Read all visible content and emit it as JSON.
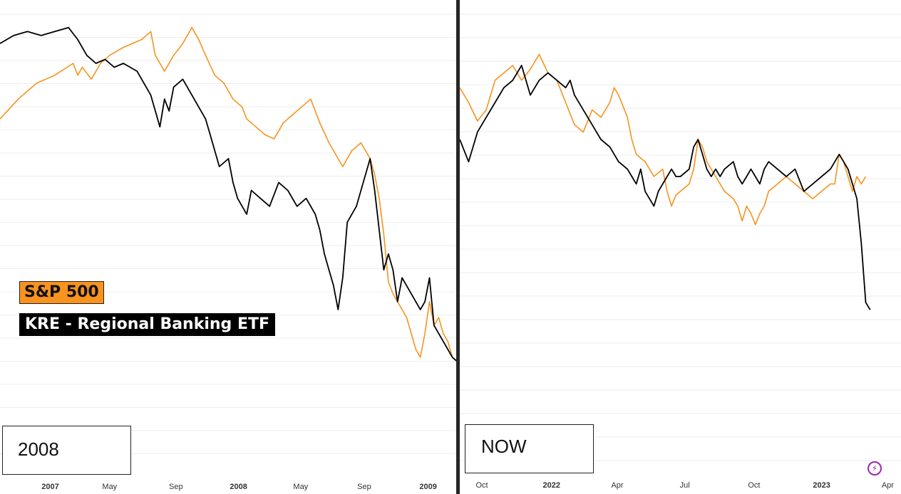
{
  "legend": {
    "sp500": "S&P 500",
    "kre": "KRE - Regional Banking ETF"
  },
  "colors": {
    "sp500": "#f7931e",
    "kre": "#000000",
    "grid": "#eeeeee",
    "divider": "#262626",
    "icon": "#9c27b0"
  },
  "icons": {
    "corner": "lightning-bolt-icon"
  },
  "chart_data": [
    {
      "type": "line",
      "period_label": "2008",
      "x_axis": {
        "ticks": [
          {
            "label": "2007",
            "t": 0.11,
            "bold": true
          },
          {
            "label": "May",
            "t": 0.24
          },
          {
            "label": "Sep",
            "t": 0.385
          },
          {
            "label": "2008",
            "t": 0.522,
            "bold": true
          },
          {
            "label": "May",
            "t": 0.658
          },
          {
            "label": "Sep",
            "t": 0.797
          },
          {
            "label": "2009",
            "t": 0.937,
            "bold": true
          }
        ]
      },
      "y_range": [
        0,
        100
      ],
      "grid": true,
      "series": [
        {
          "name": "S&P 500",
          "color": "#f7931e",
          "points": [
            [
              0,
              74
            ],
            [
              0.04,
              79
            ],
            [
              0.08,
              83
            ],
            [
              0.12,
              85
            ],
            [
              0.16,
              88
            ],
            [
              0.17,
              85
            ],
            [
              0.18,
              87
            ],
            [
              0.2,
              84
            ],
            [
              0.22,
              88
            ],
            [
              0.24,
              90
            ],
            [
              0.27,
              92
            ],
            [
              0.29,
              93
            ],
            [
              0.31,
              94
            ],
            [
              0.33,
              96
            ],
            [
              0.34,
              90
            ],
            [
              0.36,
              86
            ],
            [
              0.38,
              90
            ],
            [
              0.4,
              93
            ],
            [
              0.42,
              97
            ],
            [
              0.435,
              94
            ],
            [
              0.45,
              90
            ],
            [
              0.47,
              85
            ],
            [
              0.49,
              83
            ],
            [
              0.51,
              79
            ],
            [
              0.53,
              77
            ],
            [
              0.54,
              74
            ],
            [
              0.56,
              72
            ],
            [
              0.58,
              70
            ],
            [
              0.6,
              69
            ],
            [
              0.62,
              73
            ],
            [
              0.64,
              75
            ],
            [
              0.66,
              77
            ],
            [
              0.68,
              79
            ],
            [
              0.7,
              73
            ],
            [
              0.72,
              68
            ],
            [
              0.74,
              64
            ],
            [
              0.75,
              62
            ],
            [
              0.77,
              66
            ],
            [
              0.79,
              68
            ],
            [
              0.81,
              64
            ],
            [
              0.82,
              60
            ],
            [
              0.83,
              54
            ],
            [
              0.84,
              45
            ],
            [
              0.85,
              33
            ],
            [
              0.86,
              30
            ],
            [
              0.87,
              28
            ],
            [
              0.88,
              26
            ],
            [
              0.89,
              24
            ],
            [
              0.9,
              20
            ],
            [
              0.91,
              16
            ],
            [
              0.92,
              14
            ],
            [
              0.93,
              20
            ],
            [
              0.94,
              28
            ],
            [
              0.95,
              22
            ],
            [
              0.96,
              24
            ],
            [
              0.97,
              20
            ],
            [
              0.98,
              18
            ],
            [
              0.99,
              14
            ],
            [
              1,
              13
            ]
          ]
        },
        {
          "name": "KRE - Regional Banking ETF",
          "color": "#000000",
          "points": [
            [
              0,
              93
            ],
            [
              0.03,
              95
            ],
            [
              0.06,
              96
            ],
            [
              0.09,
              95
            ],
            [
              0.12,
              96
            ],
            [
              0.15,
              97
            ],
            [
              0.17,
              94
            ],
            [
              0.19,
              90
            ],
            [
              0.21,
              88
            ],
            [
              0.23,
              89
            ],
            [
              0.25,
              87
            ],
            [
              0.27,
              88
            ],
            [
              0.3,
              86
            ],
            [
              0.32,
              82
            ],
            [
              0.33,
              80
            ],
            [
              0.34,
              76
            ],
            [
              0.35,
              72
            ],
            [
              0.36,
              79
            ],
            [
              0.37,
              76
            ],
            [
              0.38,
              82
            ],
            [
              0.4,
              84
            ],
            [
              0.42,
              80
            ],
            [
              0.44,
              76
            ],
            [
              0.45,
              74
            ],
            [
              0.46,
              70
            ],
            [
              0.47,
              66
            ],
            [
              0.48,
              62
            ],
            [
              0.5,
              64
            ],
            [
              0.51,
              58
            ],
            [
              0.52,
              54
            ],
            [
              0.53,
              52
            ],
            [
              0.54,
              50
            ],
            [
              0.55,
              56
            ],
            [
              0.57,
              54
            ],
            [
              0.59,
              52
            ],
            [
              0.61,
              58
            ],
            [
              0.63,
              56
            ],
            [
              0.65,
              52
            ],
            [
              0.67,
              54
            ],
            [
              0.69,
              50
            ],
            [
              0.7,
              46
            ],
            [
              0.71,
              40
            ],
            [
              0.72,
              36
            ],
            [
              0.73,
              32
            ],
            [
              0.74,
              26
            ],
            [
              0.75,
              34
            ],
            [
              0.76,
              48
            ],
            [
              0.78,
              52
            ],
            [
              0.79,
              56
            ],
            [
              0.8,
              60
            ],
            [
              0.81,
              64
            ],
            [
              0.82,
              56
            ],
            [
              0.83,
              46
            ],
            [
              0.84,
              36
            ],
            [
              0.85,
              40
            ],
            [
              0.86,
              36
            ],
            [
              0.87,
              28
            ],
            [
              0.88,
              34
            ],
            [
              0.89,
              32
            ],
            [
              0.9,
              30
            ],
            [
              0.91,
              28
            ],
            [
              0.92,
              26
            ],
            [
              0.93,
              28
            ],
            [
              0.94,
              34
            ],
            [
              0.95,
              22
            ],
            [
              0.96,
              20
            ],
            [
              0.97,
              18
            ],
            [
              0.98,
              16
            ],
            [
              0.99,
              14
            ],
            [
              1,
              13
            ]
          ]
        }
      ]
    },
    {
      "type": "line",
      "period_label": "NOW",
      "x_axis": {
        "ticks": [
          {
            "label": "Oct",
            "t": 0.05
          },
          {
            "label": "2022",
            "t": 0.208,
            "bold": true
          },
          {
            "label": "Apr",
            "t": 0.357
          },
          {
            "label": "Jul",
            "t": 0.51
          },
          {
            "label": "Oct",
            "t": 0.667
          },
          {
            "label": "2023",
            "t": 0.82,
            "bold": true
          },
          {
            "label": "Apr",
            "t": 0.97
          }
        ]
      },
      "y_range": [
        0,
        100
      ],
      "grid": true,
      "series": [
        {
          "name": "S&P 500",
          "color": "#f7931e",
          "points": [
            [
              0,
              84
            ],
            [
              0.02,
              80
            ],
            [
              0.04,
              75
            ],
            [
              0.06,
              78
            ],
            [
              0.08,
              86
            ],
            [
              0.1,
              88
            ],
            [
              0.12,
              90
            ],
            [
              0.14,
              86
            ],
            [
              0.16,
              89
            ],
            [
              0.18,
              93
            ],
            [
              0.2,
              88
            ],
            [
              0.22,
              86
            ],
            [
              0.24,
              80
            ],
            [
              0.26,
              74
            ],
            [
              0.28,
              72
            ],
            [
              0.3,
              78
            ],
            [
              0.32,
              76
            ],
            [
              0.34,
              80
            ],
            [
              0.35,
              84
            ],
            [
              0.36,
              82
            ],
            [
              0.38,
              76
            ],
            [
              0.39,
              70
            ],
            [
              0.4,
              66
            ],
            [
              0.42,
              64
            ],
            [
              0.44,
              60
            ],
            [
              0.46,
              62
            ],
            [
              0.47,
              56
            ],
            [
              0.48,
              52
            ],
            [
              0.49,
              55
            ],
            [
              0.5,
              56
            ],
            [
              0.52,
              58
            ],
            [
              0.53,
              62
            ],
            [
              0.54,
              70
            ],
            [
              0.55,
              68
            ],
            [
              0.56,
              64
            ],
            [
              0.58,
              60
            ],
            [
              0.6,
              56
            ],
            [
              0.62,
              54
            ],
            [
              0.63,
              52
            ],
            [
              0.64,
              48
            ],
            [
              0.65,
              52
            ],
            [
              0.66,
              50
            ],
            [
              0.67,
              47
            ],
            [
              0.68,
              50
            ],
            [
              0.69,
              52
            ],
            [
              0.7,
              56
            ],
            [
              0.72,
              58
            ],
            [
              0.74,
              60
            ],
            [
              0.76,
              58
            ],
            [
              0.78,
              56
            ],
            [
              0.8,
              54
            ],
            [
              0.82,
              56
            ],
            [
              0.84,
              58
            ],
            [
              0.85,
              58
            ],
            [
              0.86,
              66
            ],
            [
              0.87,
              64
            ],
            [
              0.88,
              60
            ],
            [
              0.89,
              56
            ],
            [
              0.9,
              60
            ],
            [
              0.91,
              58
            ],
            [
              0.92,
              60
            ]
          ]
        },
        {
          "name": "KRE - Regional Banking ETF",
          "color": "#000000",
          "points": [
            [
              0,
              70
            ],
            [
              0.02,
              64
            ],
            [
              0.04,
              72
            ],
            [
              0.06,
              76
            ],
            [
              0.08,
              80
            ],
            [
              0.1,
              84
            ],
            [
              0.12,
              86
            ],
            [
              0.14,
              90
            ],
            [
              0.16,
              82
            ],
            [
              0.18,
              86
            ],
            [
              0.2,
              88
            ],
            [
              0.22,
              86
            ],
            [
              0.24,
              84
            ],
            [
              0.25,
              86
            ],
            [
              0.26,
              82
            ],
            [
              0.28,
              78
            ],
            [
              0.3,
              74
            ],
            [
              0.32,
              70
            ],
            [
              0.34,
              68
            ],
            [
              0.36,
              64
            ],
            [
              0.38,
              62
            ],
            [
              0.39,
              60
            ],
            [
              0.4,
              58
            ],
            [
              0.41,
              62
            ],
            [
              0.42,
              56
            ],
            [
              0.44,
              52
            ],
            [
              0.45,
              56
            ],
            [
              0.46,
              58
            ],
            [
              0.47,
              60
            ],
            [
              0.48,
              62
            ],
            [
              0.49,
              60
            ],
            [
              0.5,
              60
            ],
            [
              0.52,
              62
            ],
            [
              0.53,
              68
            ],
            [
              0.54,
              70
            ],
            [
              0.55,
              66
            ],
            [
              0.56,
              62
            ],
            [
              0.57,
              60
            ],
            [
              0.58,
              62
            ],
            [
              0.59,
              60
            ],
            [
              0.6,
              62
            ],
            [
              0.62,
              64
            ],
            [
              0.63,
              60
            ],
            [
              0.64,
              58
            ],
            [
              0.65,
              60
            ],
            [
              0.66,
              62
            ],
            [
              0.67,
              60
            ],
            [
              0.68,
              58
            ],
            [
              0.69,
              62
            ],
            [
              0.7,
              64
            ],
            [
              0.72,
              62
            ],
            [
              0.74,
              60
            ],
            [
              0.76,
              62
            ],
            [
              0.78,
              56
            ],
            [
              0.8,
              58
            ],
            [
              0.82,
              60
            ],
            [
              0.84,
              62
            ],
            [
              0.86,
              66
            ],
            [
              0.87,
              64
            ],
            [
              0.88,
              62
            ],
            [
              0.89,
              58
            ],
            [
              0.9,
              54
            ],
            [
              0.91,
              42
            ],
            [
              0.92,
              26
            ],
            [
              0.93,
              24
            ]
          ]
        }
      ]
    }
  ]
}
